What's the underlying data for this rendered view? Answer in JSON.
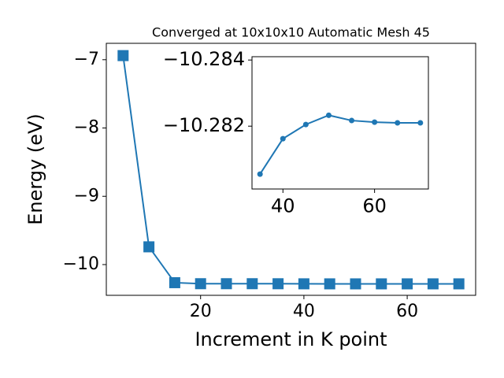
{
  "chart_data": [
    {
      "type": "line",
      "title": "Converged at 10x10x10 Automatic Mesh 45",
      "xlabel": "Increment in K point",
      "ylabel": "Energy (eV)",
      "x": [
        5,
        10,
        15,
        20,
        25,
        30,
        35,
        40,
        45,
        50,
        55,
        60,
        65,
        70
      ],
      "series": [
        {
          "color": "#1f77b4",
          "marker": "square",
          "values": [
            -6.94,
            -9.74,
            -10.265,
            -10.28,
            -10.28,
            -10.28,
            -10.2806,
            -10.2816,
            -10.2821,
            -10.2823,
            -10.2822,
            -10.2821,
            -10.2821,
            -10.2821
          ]
        }
      ],
      "xlim": [
        1.75,
        73.25
      ],
      "ylim": [
        -10.45,
        -6.76
      ],
      "xticks": [
        20,
        40,
        60
      ],
      "yticks": [
        {
          "value": -7,
          "label": "−7"
        },
        {
          "value": -8,
          "label": "−8"
        },
        {
          "value": -9,
          "label": "−9"
        },
        {
          "value": -10,
          "label": "−10"
        }
      ]
    },
    {
      "type": "line",
      "x": [
        35,
        40,
        45,
        50,
        55,
        60,
        65,
        70
      ],
      "series": [
        {
          "color": "#1f77b4",
          "marker": "circle",
          "values": [
            -10.28055,
            -10.28162,
            -10.28205,
            -10.28233,
            -10.28217,
            -10.28212,
            -10.2821,
            -10.2821
          ]
        }
      ],
      "xlim": [
        33.25,
        71.75
      ],
      "ylim": [
        -10.2801,
        -10.2841
      ],
      "xticks": [
        40,
        60
      ],
      "yticks": [
        {
          "value": -10.284,
          "label": "−10.284"
        },
        {
          "value": -10.282,
          "label": "−10.282"
        }
      ]
    }
  ]
}
